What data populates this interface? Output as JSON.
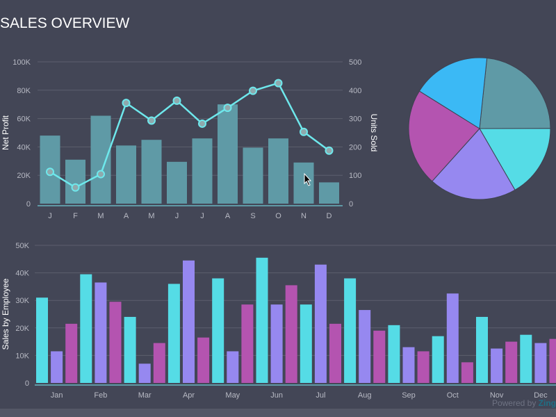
{
  "title": "SALES OVERVIEW",
  "powered_by": {
    "text": "Powered by",
    "brand": "Zing"
  },
  "chart_data": [
    {
      "type": "bar+line",
      "categories": [
        "J",
        "F",
        "M",
        "A",
        "M",
        "J",
        "J",
        "A",
        "S",
        "O",
        "N",
        "D"
      ],
      "ylabel": "Net Profit",
      "y2label": "Units Sold",
      "ylim": [
        0,
        100000
      ],
      "y2lim": [
        0,
        500
      ],
      "yticks": [
        "0",
        "20K",
        "40K",
        "60K",
        "80K",
        "100K"
      ],
      "y2ticks": [
        "0",
        "100",
        "200",
        "300",
        "400",
        "500"
      ],
      "grid": true,
      "series": [
        {
          "type": "bar",
          "axis": "left",
          "color": "#5f9aa6",
          "values": [
            48000,
            31000,
            62000,
            41000,
            45000,
            29500,
            46000,
            70000,
            39500,
            46000,
            29000,
            15000
          ]
        },
        {
          "type": "line",
          "axis": "right",
          "color": "#6ee8ec",
          "values": [
            112,
            57,
            104,
            355,
            293,
            363,
            282,
            338,
            398,
            425,
            253,
            187
          ]
        }
      ]
    },
    {
      "type": "pie",
      "values": [
        23.3,
        16.7,
        20,
        22.2,
        17.8
      ],
      "colors": [
        "#5f9aa6",
        "#55dce6",
        "#9688f0",
        "#b454b0",
        "#3bb9f5"
      ]
    },
    {
      "type": "bar",
      "categories": [
        "Jan",
        "Feb",
        "Mar",
        "Apr",
        "May",
        "Jun",
        "Jul",
        "Aug",
        "Sep",
        "Oct",
        "Nov",
        "Dec"
      ],
      "ylabel": "Sales by Employee",
      "ylim": [
        0,
        50000
      ],
      "yticks": [
        "0",
        "10K",
        "20K",
        "30K",
        "40K",
        "50K"
      ],
      "grid": true,
      "series": [
        {
          "color": "#55dce6",
          "values": [
            31000,
            39500,
            24000,
            36000,
            38000,
            45500,
            28500,
            38000,
            21000,
            17000,
            24000,
            17500
          ]
        },
        {
          "color": "#9688f0",
          "values": [
            11500,
            36500,
            7000,
            44500,
            11500,
            28500,
            43000,
            26500,
            13000,
            32500,
            12500,
            14500
          ]
        },
        {
          "color": "#b454b0",
          "values": [
            21500,
            29500,
            14500,
            16500,
            28500,
            35500,
            21500,
            19000,
            11500,
            7500,
            15000,
            16000
          ]
        }
      ]
    }
  ]
}
